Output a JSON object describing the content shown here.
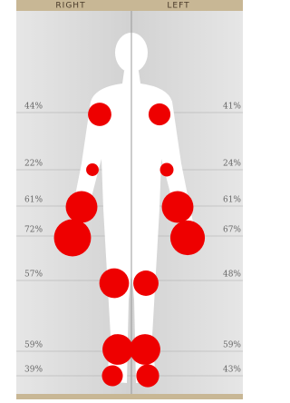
{
  "header": {
    "right": "RIGHT",
    "left": "LEFT"
  },
  "rows": [
    {
      "right": {
        "value": 44,
        "label": "44%"
      },
      "left": {
        "value": 41,
        "label": "41%"
      }
    },
    {
      "right": {
        "value": 22,
        "label": "22%"
      },
      "left": {
        "value": 24,
        "label": "24%"
      }
    },
    {
      "right": {
        "value": 61,
        "label": "61%"
      },
      "left": {
        "value": 61,
        "label": "61%"
      }
    },
    {
      "right": {
        "value": 72,
        "label": "72%"
      },
      "left": {
        "value": 67,
        "label": "67%"
      }
    },
    {
      "right": {
        "value": 57,
        "label": "57%"
      },
      "left": {
        "value": 48,
        "label": "48%"
      }
    },
    {
      "right": {
        "value": 59,
        "label": "59%"
      },
      "left": {
        "value": 59,
        "label": "59%"
      }
    },
    {
      "right": {
        "value": 39,
        "label": "39%"
      },
      "left": {
        "value": 43,
        "label": "43%"
      }
    }
  ]
}
